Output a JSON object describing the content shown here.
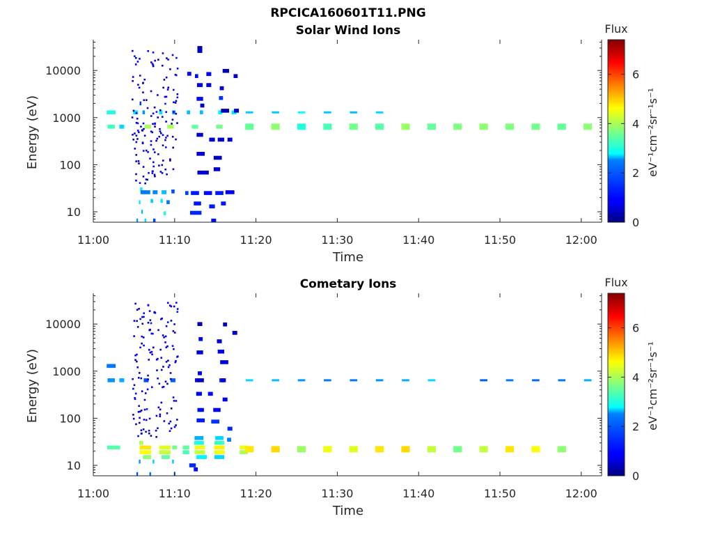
{
  "figure_title": "RPCICA160601T11.PNG",
  "colors": {
    "axis": "#262626",
    "background": "#ffffff"
  },
  "colormap": "jet",
  "chart_data": [
    {
      "type": "heatmap",
      "title": "Solar Wind Ions",
      "xlabel": "Time",
      "ylabel": "Energy (eV)",
      "x_ticks": [
        "11:00",
        "11:10",
        "11:20",
        "11:30",
        "11:40",
        "11:50",
        "12:00"
      ],
      "y_ticks": [
        "10",
        "100",
        "1000",
        "10000"
      ],
      "y_tick_values": [
        10,
        100,
        1000,
        10000
      ],
      "yscale": "log",
      "xlim_minutes": [
        0,
        62.5
      ],
      "ylim": [
        6,
        45000
      ],
      "colorbar": {
        "label": "eV⁻¹cm⁻²sr⁻¹s⁻¹",
        "title": "Flux",
        "ticks": [
          "0",
          "2",
          "4",
          "6"
        ],
        "tick_values": [
          0,
          2,
          4,
          6
        ],
        "range": [
          0,
          7.4
        ]
      },
      "cells": [
        [
          2.2,
          1290,
          1.1,
          3.0
        ],
        [
          2.2,
          640,
          0.9,
          3.2
        ],
        [
          3.5,
          640,
          0.6,
          2.5
        ],
        [
          5.2,
          1290,
          0.6,
          2.6
        ],
        [
          5.8,
          2000,
          0.2,
          1.2
        ],
        [
          6.2,
          1290,
          0.3,
          2.0
        ],
        [
          6.7,
          640,
          0.8,
          4.0
        ],
        [
          9.5,
          640,
          0.8,
          4.0
        ],
        [
          12.5,
          640,
          0.8,
          3.5
        ],
        [
          15.5,
          640,
          0.8,
          3.6
        ],
        [
          8.3,
          1290,
          0.4,
          2.6
        ],
        [
          9.9,
          1290,
          0.4,
          2.0
        ],
        [
          11.7,
          1290,
          0.4,
          2.3
        ],
        [
          13.3,
          1290,
          0.4,
          2.3
        ],
        [
          15.6,
          1290,
          0.5,
          2.7
        ],
        [
          17.3,
          1290,
          0.6,
          2.6
        ],
        [
          13.1,
          30000,
          0.6,
          0.4
        ],
        [
          13.1,
          26000,
          0.6,
          0.4
        ],
        [
          11.8,
          8500,
          0.5,
          1.0
        ],
        [
          12.7,
          7600,
          0.4,
          1.0
        ],
        [
          14.2,
          8400,
          0.6,
          0.9
        ],
        [
          16.3,
          9800,
          0.8,
          0.4
        ],
        [
          17.5,
          7600,
          0.5,
          0.5
        ],
        [
          13.1,
          4900,
          0.7,
          0.7
        ],
        [
          14.2,
          4900,
          0.6,
          0.6
        ],
        [
          15.8,
          4200,
          0.5,
          0.6
        ],
        [
          13.1,
          2500,
          0.8,
          1.0
        ],
        [
          15.7,
          2600,
          0.5,
          1.3
        ],
        [
          16.2,
          1400,
          1.0,
          0.4
        ],
        [
          17.6,
          1400,
          0.6,
          0.6
        ],
        [
          13.4,
          1800,
          0.5,
          0.5
        ],
        [
          13.1,
          430,
          0.8,
          0.6
        ],
        [
          14.6,
          340,
          0.7,
          0.6
        ],
        [
          15.7,
          340,
          0.8,
          0.6
        ],
        [
          16.8,
          340,
          0.6,
          0.5
        ],
        [
          13.2,
          170,
          1.0,
          0.6
        ],
        [
          15.3,
          140,
          1.0,
          0.5
        ],
        [
          13.5,
          68,
          1.4,
          0.6
        ],
        [
          15.2,
          80,
          0.8,
          0.6
        ],
        [
          11.5,
          25,
          0.4,
          1.4
        ],
        [
          12.5,
          25,
          1.0,
          1.1
        ],
        [
          14.1,
          25,
          1.0,
          1.0
        ],
        [
          15.5,
          25,
          1.0,
          1.1
        ],
        [
          16.8,
          26,
          1.1,
          0.9
        ],
        [
          12.8,
          15,
          0.9,
          1.1
        ],
        [
          14.6,
          13,
          0.7,
          1.1
        ],
        [
          16.0,
          15,
          0.6,
          1.1
        ],
        [
          12.6,
          9.5,
          1.4,
          1.2
        ],
        [
          14.8,
          6.5,
          0.6,
          1.0
        ],
        [
          5.9,
          30,
          0.3,
          2.7
        ],
        [
          6.4,
          26,
          1.2,
          1.8
        ],
        [
          7.6,
          26,
          0.6,
          1.9
        ],
        [
          8.7,
          26,
          0.6,
          2.3
        ],
        [
          9.8,
          27,
          0.4,
          1.5
        ],
        [
          5.7,
          16,
          0.2,
          2.6
        ],
        [
          6.0,
          10,
          0.2,
          2.3
        ],
        [
          7.2,
          17,
          0.3,
          2.4
        ],
        [
          8.4,
          17,
          0.3,
          2.6
        ],
        [
          9.2,
          16,
          0.4,
          1.8
        ],
        [
          8.8,
          9.3,
          0.3,
          3.0
        ],
        [
          5.4,
          6.5,
          0.2,
          2.0
        ],
        [
          6.4,
          6.5,
          0.2,
          2.5
        ],
        [
          7.5,
          6.5,
          0.3,
          1.4
        ]
      ],
      "periodic_cells": {
        "x_minutes": [
          19.2,
          22.4,
          25.6,
          28.8,
          32.0,
          35.2,
          38.4,
          41.6,
          44.8,
          48.0,
          51.2,
          54.4,
          57.6,
          60.8
        ],
        "energy": 640,
        "flux": [
          3.5,
          3.8,
          3.0,
          3.3,
          3.6,
          3.4,
          3.9,
          3.5,
          3.7,
          3.8,
          3.7,
          3.6,
          3.5,
          3.8
        ],
        "upper_energy": 1290,
        "upper_x_minutes": [
          19.2,
          22.4,
          25.6,
          28.8,
          32.0,
          35.2
        ],
        "upper_flux": [
          2.4,
          2.4,
          2.8,
          2.4,
          2.3,
          2.5
        ]
      }
    },
    {
      "type": "heatmap",
      "title": "Cometary Ions",
      "xlabel": "Time",
      "ylabel": "Energy (eV)",
      "x_ticks": [
        "11:00",
        "11:10",
        "11:20",
        "11:30",
        "11:40",
        "11:50",
        "12:00"
      ],
      "y_ticks": [
        "10",
        "100",
        "1000",
        "10000"
      ],
      "y_tick_values": [
        10,
        100,
        1000,
        10000
      ],
      "yscale": "log",
      "xlim_minutes": [
        0,
        62.5
      ],
      "ylim": [
        6,
        45000
      ],
      "colorbar": {
        "label": "eV⁻¹cm⁻²sr⁻¹s⁻¹",
        "title": "Flux",
        "ticks": [
          "0",
          "2",
          "4",
          "6"
        ],
        "tick_values": [
          0,
          2,
          4,
          6
        ],
        "range": [
          0,
          7.4
        ]
      },
      "cells": [
        [
          2.2,
          1290,
          1.1,
          1.8
        ],
        [
          2.2,
          640,
          0.9,
          2.0
        ],
        [
          3.5,
          640,
          0.6,
          2.2
        ],
        [
          6.5,
          640,
          0.6,
          1.5
        ],
        [
          9.8,
          640,
          0.6,
          1.6
        ],
        [
          12.8,
          640,
          0.6,
          1.0
        ],
        [
          15.8,
          640,
          0.6,
          1.2
        ],
        [
          13.2,
          640,
          0.8,
          0.6
        ],
        [
          16.0,
          640,
          0.6,
          0.7
        ],
        [
          13.1,
          10000,
          0.6,
          0.4
        ],
        [
          16.2,
          9800,
          0.5,
          0.4
        ],
        [
          17.4,
          6500,
          0.6,
          0.6
        ],
        [
          13.2,
          4800,
          0.5,
          0.8
        ],
        [
          15.5,
          4300,
          0.6,
          0.6
        ],
        [
          13.1,
          2500,
          0.8,
          0.7
        ],
        [
          15.7,
          2600,
          0.8,
          0.8
        ],
        [
          16.1,
          1550,
          1.0,
          0.7
        ],
        [
          13.1,
          900,
          0.5,
          0.8
        ],
        [
          13.0,
          330,
          0.7,
          0.8
        ],
        [
          14.4,
          330,
          0.6,
          1.0
        ],
        [
          16.2,
          250,
          0.6,
          0.8
        ],
        [
          13.2,
          150,
          0.8,
          1.0
        ],
        [
          15.2,
          150,
          0.9,
          0.9
        ],
        [
          13.2,
          90,
          1.0,
          1.1
        ],
        [
          15.0,
          85,
          1.0,
          1.3
        ],
        [
          16.8,
          60,
          0.6,
          1.2
        ],
        [
          13.0,
          38,
          1.1,
          2.2
        ],
        [
          15.5,
          38,
          1.0,
          2.5
        ],
        [
          16.7,
          35,
          0.5,
          1.8
        ],
        [
          13.0,
          30,
          1.2,
          3.0
        ],
        [
          15.5,
          30,
          1.2,
          3.2
        ],
        [
          13.1,
          24,
          1.3,
          4.5
        ],
        [
          15.5,
          24,
          1.3,
          4.7
        ],
        [
          13.1,
          19,
          1.3,
          4.2
        ],
        [
          15.5,
          19,
          1.3,
          4.5
        ],
        [
          13.3,
          15,
          1.3,
          2.7
        ],
        [
          15.5,
          15,
          1.2,
          2.5
        ],
        [
          11.4,
          24,
          0.8,
          3.5
        ],
        [
          11.4,
          19,
          0.8,
          3.3
        ],
        [
          12.2,
          10,
          0.8,
          1.2
        ],
        [
          12.6,
          8.2,
          0.5,
          1.0
        ],
        [
          5.9,
          30,
          0.5,
          4.0
        ],
        [
          6.4,
          24,
          1.4,
          4.8
        ],
        [
          6.4,
          19,
          1.4,
          4.6
        ],
        [
          8.8,
          24,
          1.4,
          4.4
        ],
        [
          8.8,
          19,
          1.4,
          4.2
        ],
        [
          6.6,
          15,
          1.0,
          3.8
        ],
        [
          8.9,
          15,
          1.0,
          3.5
        ],
        [
          10.0,
          24,
          0.6,
          3.6
        ],
        [
          2.5,
          24,
          1.6,
          3.4
        ],
        [
          5.7,
          12,
          0.2,
          2.0
        ],
        [
          7.4,
          12,
          0.2,
          2.4
        ],
        [
          9.8,
          12,
          0.2,
          2.3
        ],
        [
          5.4,
          6.5,
          0.2,
          1.5
        ],
        [
          7.0,
          6.5,
          0.2,
          1.7
        ],
        [
          10.0,
          6.5,
          0.2,
          1.7
        ],
        [
          18.5,
          24,
          1.0,
          4.5
        ],
        [
          18.5,
          19,
          1.0,
          4.0
        ]
      ],
      "periodic_cells": {
        "x_minutes": [
          19.2,
          22.4,
          25.6,
          28.8,
          32.0,
          35.2,
          38.4,
          41.6,
          44.8,
          48.0,
          51.2,
          54.4,
          57.6
        ],
        "energy": 22,
        "flux": [
          4.8,
          4.9,
          3.9,
          4.5,
          4.4,
          4.8,
          4.9,
          4.2,
          3.6,
          4.2,
          4.8,
          4.6,
          3.8
        ],
        "upper_energy": 640,
        "upper_x_minutes": [
          19.2,
          22.4,
          25.6,
          28.8,
          32.0,
          35.2,
          38.4,
          41.6,
          48.0,
          51.2,
          54.4,
          57.6,
          60.8
        ],
        "upper_flux": [
          2.5,
          2.3,
          2.0,
          1.8,
          1.8,
          2.0,
          2.2,
          2.5,
          1.6,
          1.8,
          1.7,
          1.8,
          2.2
        ]
      }
    }
  ]
}
